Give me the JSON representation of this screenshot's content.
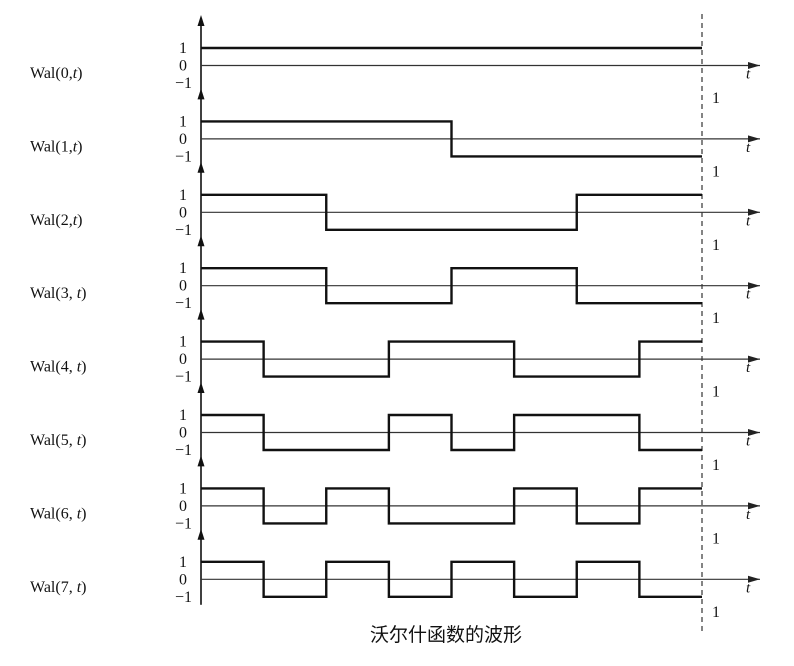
{
  "figure": {
    "caption": "沃尔什函数的波形",
    "time_axis_label": "t",
    "period_end_label": "1",
    "level_labels": {
      "high": "1",
      "zero": "0",
      "low": "−1"
    }
  },
  "chart_data": {
    "type": "line",
    "x_range": [
      0,
      1
    ],
    "series": [
      {
        "name": "Wal(0,t)",
        "label_main": "Wal(0,",
        "label_var": "t",
        "label_close": ")",
        "values": [
          1,
          1,
          1,
          1,
          1,
          1,
          1,
          1,
          1,
          1,
          1,
          1,
          1,
          1,
          1,
          1
        ]
      },
      {
        "name": "Wal(1,t)",
        "label_main": "Wal(1,",
        "label_var": "t",
        "label_close": ")",
        "values": [
          1,
          1,
          1,
          1,
          1,
          1,
          1,
          1,
          -1,
          -1,
          -1,
          -1,
          -1,
          -1,
          -1,
          -1
        ]
      },
      {
        "name": "Wal(2,t)",
        "label_main": "Wal(2,",
        "label_var": "t",
        "label_close": ")",
        "values": [
          1,
          1,
          1,
          1,
          -1,
          -1,
          -1,
          -1,
          -1,
          -1,
          -1,
          -1,
          1,
          1,
          1,
          1
        ]
      },
      {
        "name": "Wal(3, t)",
        "label_main": "Wal(3, ",
        "label_var": "t",
        "label_close": ")",
        "values": [
          1,
          1,
          1,
          1,
          -1,
          -1,
          -1,
          -1,
          1,
          1,
          1,
          1,
          -1,
          -1,
          -1,
          -1
        ]
      },
      {
        "name": "Wal(4, t)",
        "label_main": "Wal(4, ",
        "label_var": "t",
        "label_close": ")",
        "values": [
          1,
          1,
          -1,
          -1,
          -1,
          -1,
          1,
          1,
          1,
          1,
          -1,
          -1,
          -1,
          -1,
          1,
          1
        ]
      },
      {
        "name": "Wal(5, t)",
        "label_main": "Wal(5, ",
        "label_var": "t",
        "label_close": ")",
        "values": [
          1,
          1,
          -1,
          -1,
          -1,
          -1,
          1,
          1,
          -1,
          -1,
          1,
          1,
          1,
          1,
          -1,
          -1
        ]
      },
      {
        "name": "Wal(6, t)",
        "label_main": "Wal(6, ",
        "label_var": "t",
        "label_close": ")",
        "values": [
          1,
          1,
          -1,
          -1,
          1,
          1,
          -1,
          -1,
          -1,
          -1,
          1,
          1,
          -1,
          -1,
          1,
          1
        ]
      },
      {
        "name": "Wal(7, t)",
        "label_main": "Wal(7, ",
        "label_var": "t",
        "label_close": ")",
        "values": [
          1,
          1,
          -1,
          -1,
          1,
          1,
          -1,
          -1,
          1,
          1,
          -1,
          -1,
          1,
          1,
          -1,
          -1
        ]
      }
    ]
  }
}
